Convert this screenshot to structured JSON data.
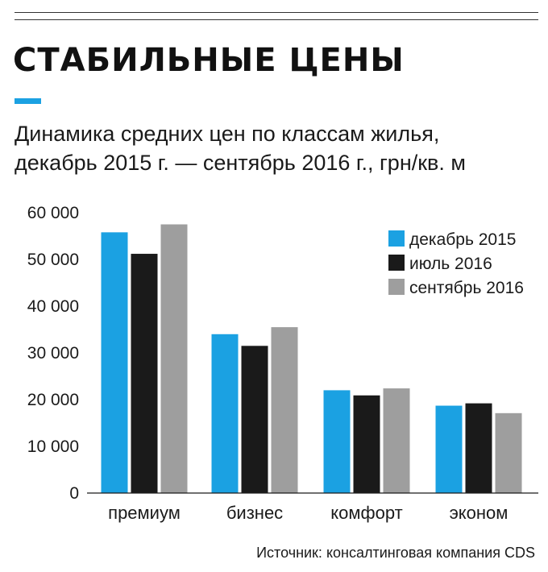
{
  "header": {
    "title": "СТАБИЛЬНЫЕ ЦЕНЫ",
    "subtitle_line1": "Динамика средних цен по классам жилья,",
    "subtitle_line2": "декабрь 2015 г. — сентябрь 2016 г., грн/кв. м"
  },
  "source": "Источник: консалтинговая компания CDS",
  "colors": {
    "accent": "#1ba1e2",
    "dec2015": "#1ba1e2",
    "jul2016": "#1a1a1a",
    "sep2016": "#9e9e9e"
  },
  "chart_data": {
    "type": "bar",
    "categories": [
      "премиум",
      "бизнес",
      "комфорт",
      "эконом"
    ],
    "series": [
      {
        "name": "декабрь 2015",
        "values": [
          55800,
          34000,
          22000,
          18700
        ]
      },
      {
        "name": "июль 2016",
        "values": [
          51200,
          31500,
          20900,
          19200
        ]
      },
      {
        "name": "сентябрь 2016",
        "values": [
          57500,
          35500,
          22400,
          17100
        ]
      }
    ],
    "yticks": [
      "0",
      "10 000",
      "20 000",
      "30 000",
      "40 000",
      "50 000",
      "60 000"
    ],
    "ylim": [
      0,
      60000
    ],
    "grid": false,
    "legend_position": "top-right"
  }
}
